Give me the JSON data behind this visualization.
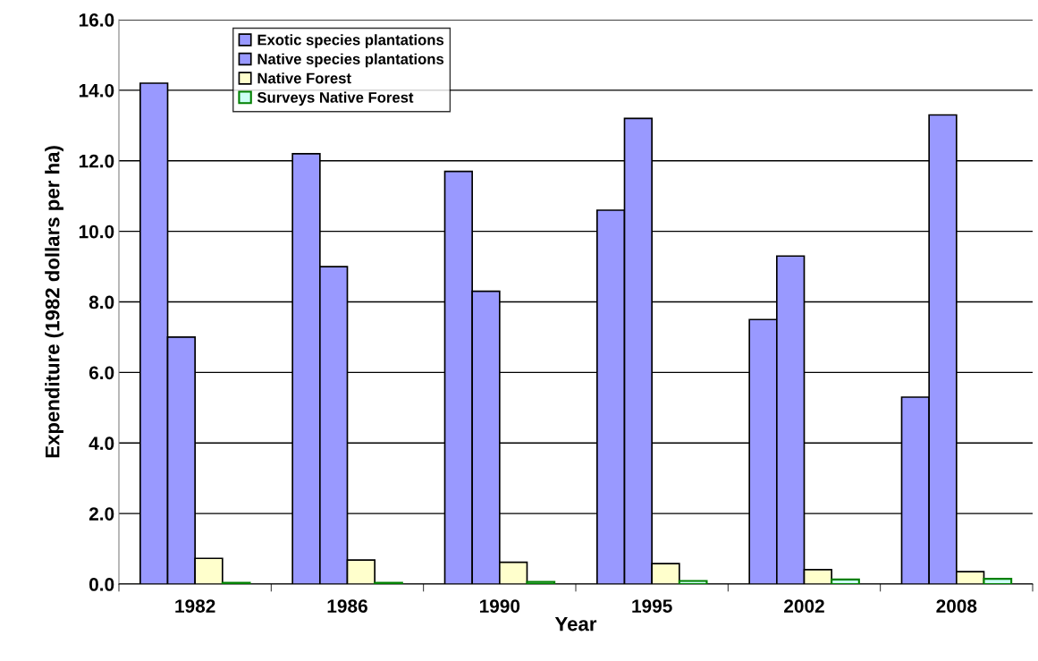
{
  "chart_data": {
    "type": "bar",
    "xlabel": "Year",
    "ylabel": "Expenditure (1982 dollars per ha)",
    "categories": [
      "1982",
      "1986",
      "1990",
      "1995",
      "2002",
      "2008"
    ],
    "series": [
      {
        "name": "Exotic species plantations",
        "color": "#9999ff",
        "values": [
          14.2,
          12.2,
          11.7,
          10.6,
          7.5,
          5.3
        ]
      },
      {
        "name": "Native species plantations",
        "color": "#9999ff",
        "values": [
          7.0,
          9.0,
          8.3,
          13.2,
          9.3,
          13.3
        ]
      },
      {
        "name": "Native Forest",
        "color": "#ffffcc",
        "values": [
          0.73,
          0.68,
          0.62,
          0.58,
          0.41,
          0.35
        ]
      },
      {
        "name": "Surveys Native Forest",
        "color": "#008000",
        "values": [
          0.04,
          0.04,
          0.06,
          0.09,
          0.13,
          0.15
        ]
      }
    ],
    "ylim": [
      0,
      16
    ],
    "yticks": [
      {
        "value": 0,
        "label": "0.0"
      },
      {
        "value": 2,
        "label": "2.0"
      },
      {
        "value": 4,
        "label": "4.0"
      },
      {
        "value": 6,
        "label": "6.0"
      },
      {
        "value": 8,
        "label": "8.0"
      },
      {
        "value": 10,
        "label": "10.0"
      },
      {
        "value": 12,
        "label": "12.0"
      },
      {
        "value": 14,
        "label": "14.0"
      },
      {
        "value": 16,
        "label": "16.0"
      }
    ],
    "grid": "y",
    "legend": "top left"
  }
}
